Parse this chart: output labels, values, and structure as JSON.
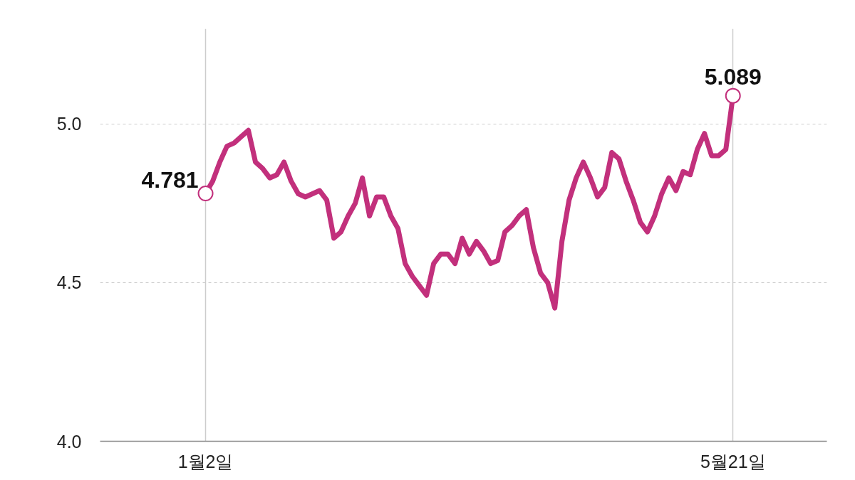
{
  "chart_data": {
    "type": "line",
    "categories": [
      "1월2일",
      null,
      null,
      null,
      null,
      null,
      null,
      null,
      null,
      null,
      null,
      null,
      null,
      null,
      null,
      null,
      null,
      null,
      null,
      null,
      null,
      null,
      null,
      null,
      null,
      null,
      null,
      null,
      null,
      null,
      null,
      null,
      null,
      null,
      null,
      null,
      null,
      null,
      null,
      null,
      null,
      null,
      null,
      null,
      null,
      null,
      null,
      null,
      null,
      null,
      null,
      null,
      null,
      null,
      null,
      null,
      null,
      null,
      null,
      null,
      null,
      null,
      null,
      null,
      null,
      null,
      null,
      null,
      null,
      null,
      null,
      null,
      null,
      null,
      "5월21일"
    ],
    "values": [
      4.781,
      4.82,
      4.88,
      4.93,
      4.94,
      4.96,
      4.98,
      4.88,
      4.86,
      4.83,
      4.84,
      4.88,
      4.82,
      4.78,
      4.77,
      4.78,
      4.79,
      4.76,
      4.64,
      4.66,
      4.71,
      4.75,
      4.83,
      4.71,
      4.77,
      4.77,
      4.71,
      4.67,
      4.56,
      4.52,
      4.49,
      4.46,
      4.56,
      4.59,
      4.59,
      4.56,
      4.64,
      4.59,
      4.63,
      4.6,
      4.56,
      4.57,
      4.66,
      4.68,
      4.71,
      4.73,
      4.61,
      4.53,
      4.5,
      4.42,
      4.63,
      4.76,
      4.83,
      4.88,
      4.83,
      4.77,
      4.8,
      4.91,
      4.89,
      4.82,
      4.76,
      4.69,
      4.66,
      4.71,
      4.78,
      4.83,
      4.79,
      4.85,
      4.84,
      4.92,
      4.97,
      4.9,
      4.9,
      4.92,
      5.089
    ],
    "value_labels": [
      "4.781",
      null,
      null,
      null,
      null,
      null,
      null,
      null,
      null,
      null,
      null,
      null,
      null,
      null,
      null,
      null,
      null,
      null,
      null,
      null,
      null,
      null,
      null,
      null,
      null,
      null,
      null,
      null,
      null,
      null,
      null,
      null,
      null,
      null,
      null,
      null,
      null,
      null,
      null,
      null,
      null,
      null,
      null,
      null,
      null,
      null,
      null,
      null,
      null,
      null,
      null,
      null,
      null,
      null,
      null,
      null,
      null,
      null,
      null,
      null,
      null,
      null,
      null,
      null,
      null,
      null,
      null,
      null,
      null,
      null,
      null,
      null,
      null,
      null,
      "5.089"
    ],
    "color": "#c2307c",
    "ylim": [
      4.0,
      5.3
    ],
    "yticks": [
      {
        "value": 4.0,
        "label": "4.0"
      },
      {
        "value": 4.5,
        "label": "4.5"
      },
      {
        "value": 5.0,
        "label": "5.0"
      }
    ],
    "grid": true
  }
}
